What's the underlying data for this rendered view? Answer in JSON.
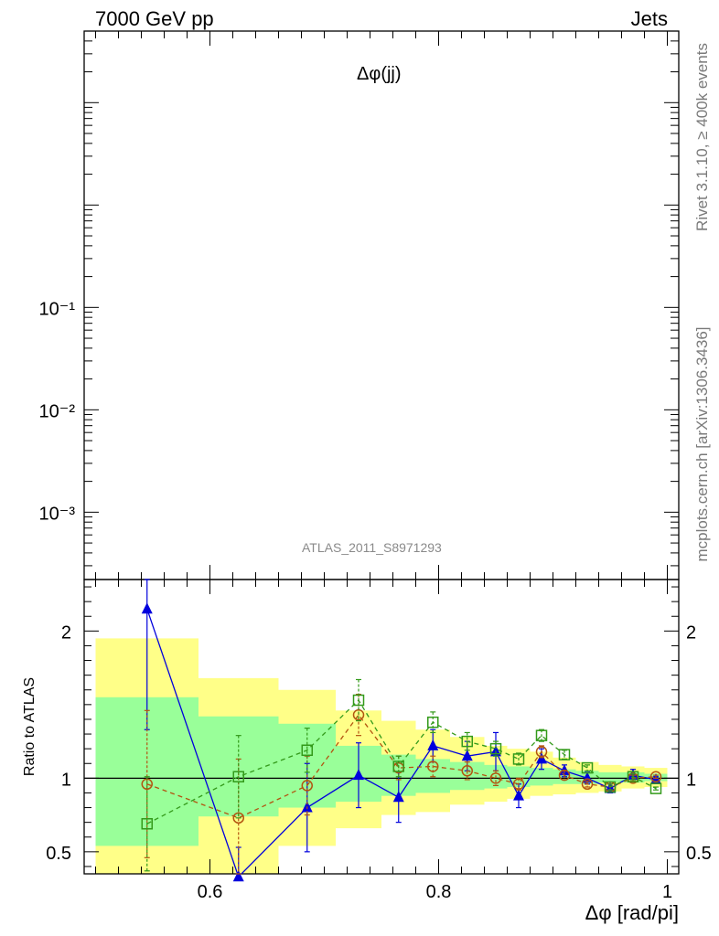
{
  "header": {
    "left": "7000 GeV pp",
    "right": "Jets"
  },
  "side_labels": {
    "top": "Rivet 3.1.10, ≥ 400k events",
    "bottom": "mcplots.cern.ch [arXiv:1306.3436]"
  },
  "watermark": "ATLAS_2011_S8971293",
  "chart_data": [
    {
      "type": "line",
      "title": "Δφ(jj)",
      "yscale": "log",
      "y_tick_labels": [
        "10⁻³",
        "10⁻²",
        "10⁻¹"
      ],
      "y_tick_values": [
        0.001,
        0.01,
        0.1
      ],
      "ylim": [
        0.00022,
        50
      ],
      "xlim": [
        0.49,
        1.01
      ],
      "series": []
    },
    {
      "type": "line",
      "ylabel": "Ratio to ATLAS",
      "xlabel": "Δφ [rad/pi]",
      "xlim": [
        0.49,
        1.01
      ],
      "ylim": [
        0.35,
        2.35
      ],
      "x_tick_labels": [
        "0.6",
        "0.8",
        "1"
      ],
      "x_tick_values": [
        0.6,
        0.8,
        1.0
      ],
      "y_tick_labels": [
        "0.5",
        "1",
        "2"
      ],
      "y_tick_values": [
        0.5,
        1.0,
        2.0
      ],
      "reference_line": 1.0,
      "bands": [
        {
          "x0": 0.5,
          "x1": 0.59,
          "yellow": [
            0.35,
            1.95
          ],
          "green": [
            0.54,
            1.55
          ]
        },
        {
          "x0": 0.59,
          "x1": 0.66,
          "yellow": [
            0.35,
            1.68
          ],
          "green": [
            0.74,
            1.42
          ]
        },
        {
          "x0": 0.66,
          "x1": 0.71,
          "yellow": [
            0.54,
            1.6
          ],
          "green": [
            0.8,
            1.37
          ]
        },
        {
          "x0": 0.71,
          "x1": 0.75,
          "yellow": [
            0.66,
            1.46
          ],
          "green": [
            0.84,
            1.22
          ]
        },
        {
          "x0": 0.75,
          "x1": 0.78,
          "yellow": [
            0.75,
            1.39
          ],
          "green": [
            0.88,
            1.16
          ]
        },
        {
          "x0": 0.78,
          "x1": 0.81,
          "yellow": [
            0.77,
            1.33
          ],
          "green": [
            0.9,
            1.13
          ]
        },
        {
          "x0": 0.81,
          "x1": 0.84,
          "yellow": [
            0.82,
            1.28
          ],
          "green": [
            0.92,
            1.11
          ]
        },
        {
          "x0": 0.84,
          "x1": 0.86,
          "yellow": [
            0.84,
            1.22
          ],
          "green": [
            0.93,
            1.09
          ]
        },
        {
          "x0": 0.86,
          "x1": 0.88,
          "yellow": [
            0.86,
            1.2
          ],
          "green": [
            0.94,
            1.08
          ]
        },
        {
          "x0": 0.88,
          "x1": 0.9,
          "yellow": [
            0.88,
            1.18
          ],
          "green": [
            0.95,
            1.07
          ]
        },
        {
          "x0": 0.9,
          "x1": 0.92,
          "yellow": [
            0.89,
            1.14
          ],
          "green": [
            0.96,
            1.06
          ]
        },
        {
          "x0": 0.92,
          "x1": 0.94,
          "yellow": [
            0.9,
            1.11
          ],
          "green": [
            0.96,
            1.05
          ]
        },
        {
          "x0": 0.94,
          "x1": 0.96,
          "yellow": [
            0.91,
            1.09
          ],
          "green": [
            0.97,
            1.04
          ]
        },
        {
          "x0": 0.96,
          "x1": 0.98,
          "yellow": [
            0.93,
            1.08
          ],
          "green": [
            0.97,
            1.04
          ]
        },
        {
          "x0": 0.98,
          "x1": 1.0,
          "yellow": [
            0.94,
            1.07
          ],
          "green": [
            0.98,
            1.03
          ]
        }
      ],
      "series": [
        {
          "color": "#0000dd",
          "marker": "triangle",
          "dash": "solid",
          "x": [
            0.545,
            0.625,
            0.685,
            0.73,
            0.765,
            0.795,
            0.825,
            0.85,
            0.87,
            0.89,
            0.91,
            0.93,
            0.95,
            0.97,
            0.99
          ],
          "y": [
            2.15,
            0.33,
            0.8,
            1.02,
            0.87,
            1.22,
            1.15,
            1.18,
            0.88,
            1.13,
            1.05,
            1.0,
            0.93,
            1.02,
            0.99
          ],
          "err": [
            0.82,
            0.2,
            0.3,
            0.22,
            0.17,
            0.11,
            0.1,
            0.13,
            0.08,
            0.07,
            0.04,
            0.04,
            0.03,
            0.04,
            0.02
          ]
        },
        {
          "color": "#b35410",
          "marker": "circle",
          "dash": "dashed",
          "x": [
            0.545,
            0.625,
            0.685,
            0.73,
            0.765,
            0.795,
            0.825,
            0.85,
            0.87,
            0.89,
            0.91,
            0.93,
            0.95,
            0.97,
            0.99
          ],
          "y": [
            0.96,
            0.73,
            0.95,
            1.43,
            1.07,
            1.08,
            1.05,
            1.0,
            0.96,
            1.18,
            1.02,
            0.96,
            0.94,
            1.0,
            1.01
          ],
          "err": [
            0.5,
            0.4,
            0.2,
            0.14,
            0.08,
            0.07,
            0.06,
            0.05,
            0.04,
            0.04,
            0.03,
            0.02,
            0.02,
            0.02,
            0.01
          ]
        },
        {
          "color": "#339a1a",
          "marker": "square",
          "dash": "dashed",
          "x": [
            0.545,
            0.625,
            0.685,
            0.73,
            0.765,
            0.795,
            0.825,
            0.85,
            0.87,
            0.89,
            0.91,
            0.93,
            0.95,
            0.97,
            0.99
          ],
          "y": [
            0.69,
            1.01,
            1.19,
            1.53,
            1.08,
            1.38,
            1.25,
            1.2,
            1.13,
            1.29,
            1.16,
            1.07,
            0.94,
            1.01,
            0.93
          ],
          "err": [
            0.32,
            0.28,
            0.15,
            0.14,
            0.07,
            0.07,
            0.06,
            0.05,
            0.04,
            0.04,
            0.03,
            0.02,
            0.02,
            0.02,
            0.01
          ]
        }
      ]
    }
  ]
}
